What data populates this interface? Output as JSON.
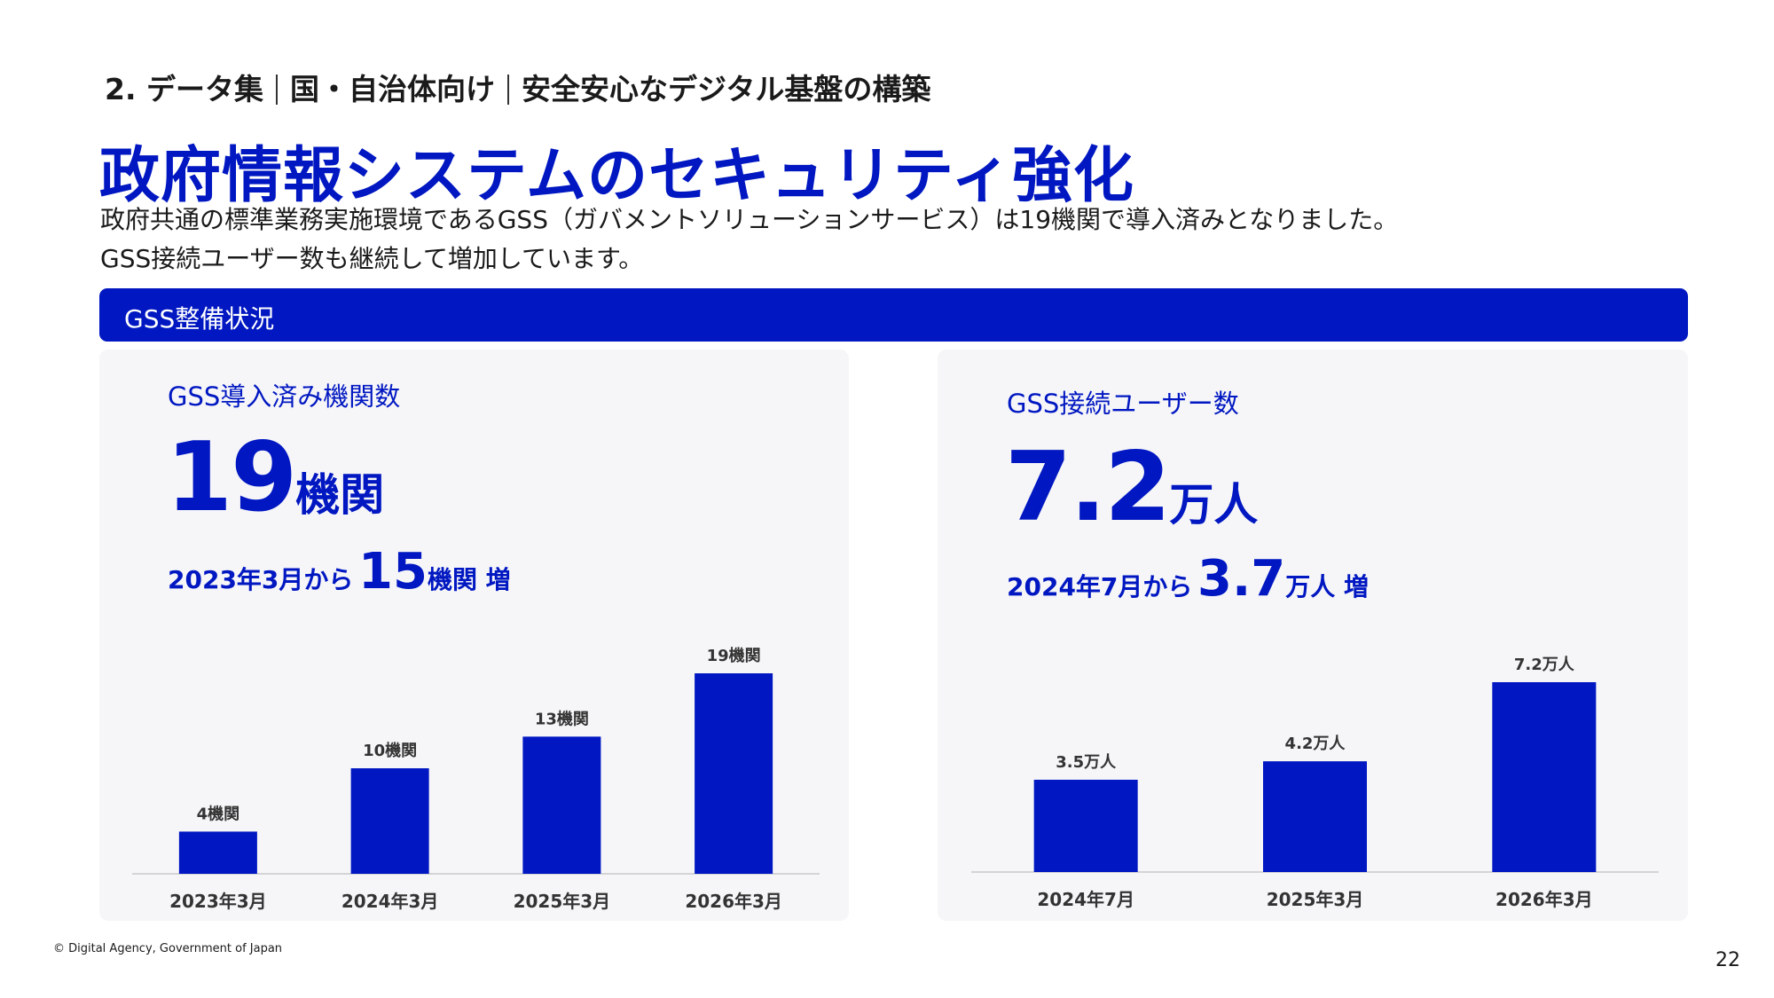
{
  "header": {
    "breadcrumb": [
      "2. データ集",
      "国・自治体向け",
      "安全安心なデジタル基盤の構築"
    ],
    "title": "政府情報システムのセキュリティ強化",
    "description": [
      "政府共通の標準業務実施環境であるGSS（ガバメントソリューションサービス）は19機関で導入済みとなりました。",
      "GSS接続ユーザー数も継続して増加しています。"
    ]
  },
  "section": {
    "label": "GSS整備状況"
  },
  "left_panel": {
    "title": "GSS導入済み機関数",
    "big_value": "19",
    "big_unit": "機関",
    "delta_prefix": "2023年3月から",
    "delta_value": "15",
    "delta_suffix": "機関 増"
  },
  "right_panel": {
    "title": "GSS接続ユーザー数",
    "big_value": "7.2",
    "big_unit": "万人",
    "delta_prefix": "2024年7月から",
    "delta_value": "3.7",
    "delta_suffix": "万人 増"
  },
  "colors": {
    "accent": "#0017c1",
    "panel_bg": "#f6f6f9",
    "label": "#333333"
  },
  "chart_data": [
    {
      "type": "bar",
      "categories": [
        "2023年3月",
        "2024年3月",
        "2025年3月",
        "2026年3月"
      ],
      "values": [
        4,
        10,
        13,
        19
      ],
      "data_labels": [
        "4機関",
        "10機関",
        "13機関",
        "19機関"
      ],
      "ylim": [
        0,
        19
      ]
    },
    {
      "type": "bar",
      "categories": [
        "2024年7月",
        "2025年3月",
        "2026年3月"
      ],
      "values": [
        3.5,
        4.2,
        7.2
      ],
      "data_labels": [
        "3.5万人",
        "4.2万人",
        "7.2万人"
      ],
      "ylim": [
        0,
        7.2
      ]
    }
  ],
  "footer": {
    "copyright": "© Digital Agency, Government of Japan",
    "page_number": "22"
  }
}
